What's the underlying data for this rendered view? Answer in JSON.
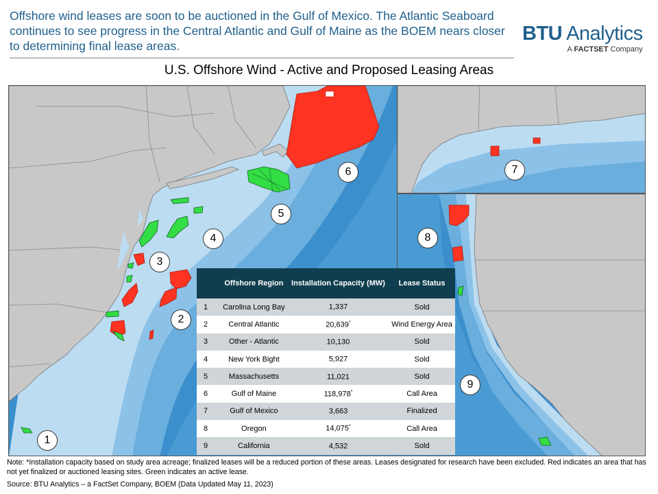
{
  "headline": "Offshore wind leases are soon to be auctioned in the Gulf of Mexico. The Atlantic Seaboard continues to see progress in the Central Atlantic and Gulf of Maine as the BOEM nears closer to determining final lease areas.",
  "logo": {
    "bold": "BTU",
    "light": " Analytics",
    "sub_prefix": "A ",
    "sub_brand": "FACTSET",
    "sub_suffix": " Company"
  },
  "map_title": "U.S. Offshore Wind - Active and Proposed Leasing Areas",
  "colors": {
    "ocean_deep": "#3b8fcc",
    "ocean_shallow": "#bcdcf2",
    "land": "#c8c8c8",
    "active_lease": "#33dd44",
    "proposed_area": "#ff3322",
    "table_header": "#0f3e4e"
  },
  "map_labels": [
    "1",
    "2",
    "3",
    "4",
    "5",
    "6",
    "7",
    "8",
    "9"
  ],
  "table": {
    "headers": [
      "",
      "Offshore Region",
      "Installation Capacity (MW)",
      "Lease Status"
    ],
    "rows": [
      {
        "id": "1",
        "region": "Carolina Long Bay",
        "capacity": "1,337",
        "note": "",
        "status": "Sold"
      },
      {
        "id": "2",
        "region": "Central Atlantic",
        "capacity": "20,639",
        "note": "*",
        "status": "Wind Energy Area"
      },
      {
        "id": "3",
        "region": "Other - Atlantic",
        "capacity": "10,130",
        "note": "",
        "status": "Sold"
      },
      {
        "id": "4",
        "region": "New York Bight",
        "capacity": "5,927",
        "note": "",
        "status": "Sold"
      },
      {
        "id": "5",
        "region": "Massachusetts",
        "capacity": "11,021",
        "note": "",
        "status": "Sold"
      },
      {
        "id": "6",
        "region": "Gulf of Maine",
        "capacity": "118,978",
        "note": "*",
        "status": "Call Area"
      },
      {
        "id": "7",
        "region": "Gulf of Mexico",
        "capacity": "3,663",
        "note": "",
        "status": "Finalized"
      },
      {
        "id": "8",
        "region": "Oregon",
        "capacity": "14,075",
        "note": "*",
        "status": "Call Area"
      },
      {
        "id": "9",
        "region": "California",
        "capacity": "4,532",
        "note": "",
        "status": "Sold"
      }
    ]
  },
  "note": "Note:   *Installation capacity based on study area acreage; finalized leases will be a reduced portion of these areas. Leases designated for research have been excluded. Red indicates an area that has not yet finalized or auctioned leasing sites. Green indicates an active lease.",
  "source": "Source:  BTU Analytics – a FactSet Company, BOEM (Data Updated May 11, 2023)"
}
